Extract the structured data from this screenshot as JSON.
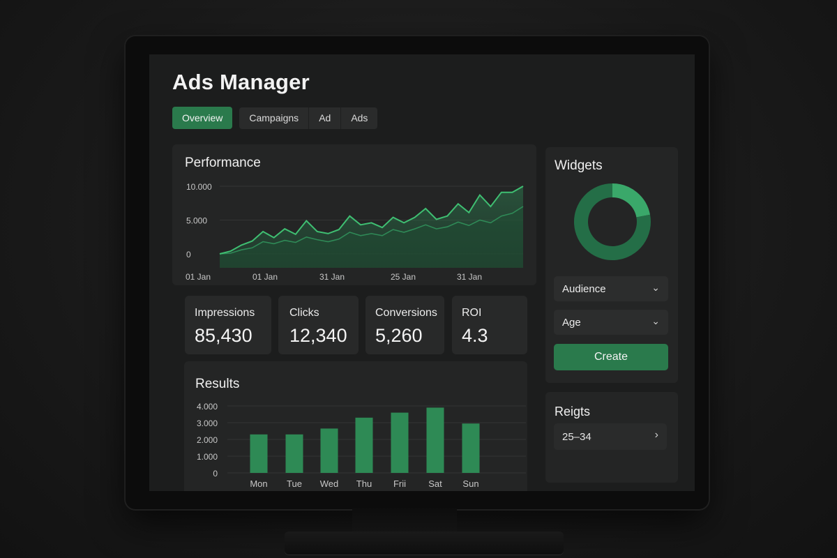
{
  "app": {
    "title": "Ads Manager"
  },
  "tabs": [
    {
      "label": "Overview",
      "active": true
    },
    {
      "label": "Campaigns",
      "active": false
    },
    {
      "label": "Ad",
      "active": false
    },
    {
      "label": "Ads",
      "active": false
    }
  ],
  "performance": {
    "title": "Performance"
  },
  "metrics": [
    {
      "label": "Impressions",
      "value": "85,430"
    },
    {
      "label": "Clicks",
      "value": "12,340"
    },
    {
      "label": "Conversions",
      "value": "5,260"
    },
    {
      "label": "ROI",
      "value": "4.3"
    }
  ],
  "results": {
    "title": "Results"
  },
  "widgets": {
    "title": "Widgets",
    "audience_label": "Audience",
    "age_label": "Age",
    "create_label": "Create"
  },
  "regions": {
    "title": "Reigts",
    "item_label": "25–34"
  },
  "colors": {
    "accent": "#2a7a4c",
    "line_primary": "#3fbf72",
    "line_secondary": "#2f8a57",
    "background": "#1c1d1d",
    "card": "#242525"
  },
  "chart_data": [
    {
      "type": "line",
      "title": "Performance",
      "yticks": [
        "10.000",
        "5.000",
        "0"
      ],
      "xticks": [
        "01 Jan",
        "01 Jan",
        "31 Jan",
        "25 Jan",
        "31 Jan"
      ],
      "ylim": [
        0,
        10000
      ],
      "series": [
        {
          "values": [
            0,
            400,
            1300,
            1900,
            3300,
            2400,
            3700,
            2900,
            4900,
            3300,
            3000,
            3600,
            5600,
            4300,
            4600,
            3900,
            5400,
            4600,
            5400,
            6700,
            5100,
            5600,
            7400,
            6100,
            8700,
            7000,
            9100,
            9100,
            10000
          ]
        },
        {
          "values": [
            0,
            100,
            600,
            900,
            1800,
            1500,
            2000,
            1700,
            2500,
            2100,
            1800,
            2200,
            3200,
            2700,
            3000,
            2700,
            3600,
            3200,
            3700,
            4300,
            3700,
            4000,
            4700,
            4200,
            5000,
            4600,
            5600,
            6000,
            7000
          ]
        }
      ],
      "grid": true
    },
    {
      "type": "bar",
      "title": "Results",
      "categories": [
        "Mon",
        "Tue",
        "Wed",
        "Thu",
        "Frii",
        "Sat",
        "Sun"
      ],
      "values": [
        2300,
        2300,
        2650,
        3300,
        3600,
        3900,
        2950
      ],
      "yticks": [
        "4.000",
        "3.000",
        "2.000",
        "1.000",
        "0"
      ],
      "ylim": [
        0,
        4000
      ],
      "grid": true
    }
  ],
  "donut": {
    "segments": [
      {
        "value": 0.22,
        "color": "#3aa86a"
      },
      {
        "value": 0.78,
        "color": "#246e47"
      }
    ]
  }
}
